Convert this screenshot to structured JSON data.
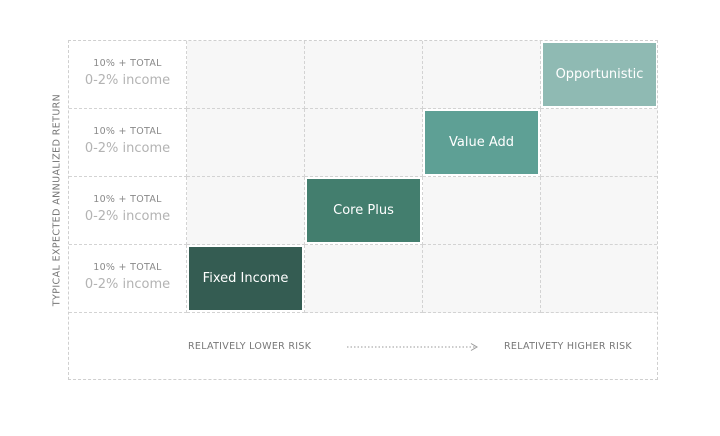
{
  "y_axis_label": "TYPICAL EXPECTED ANNUALIZED RETURN",
  "rows": [
    {
      "total": "10% + TOTAL",
      "income": "0-2% income"
    },
    {
      "total": "10% + TOTAL",
      "income": "0-2% income"
    },
    {
      "total": "10% + TOTAL",
      "income": "0-2% income"
    },
    {
      "total": "10% + TOTAL",
      "income": "0-2% income"
    }
  ],
  "strategies": [
    {
      "label": "Opportunistic",
      "color": "#8fbab3"
    },
    {
      "label": "Value Add",
      "color": "#5ea095"
    },
    {
      "label": "Core Plus",
      "color": "#437e6e"
    },
    {
      "label": "Fixed Income",
      "color": "#345c52"
    }
  ],
  "x_axis": {
    "low_label": "RELATIVELY LOWER RISK",
    "high_label": "RELATIVETY HIGHER RISK"
  },
  "colors": {
    "grid_line": "#d3d3d3",
    "cell_fill": "#f7f7f7",
    "axis_text": "#777777"
  }
}
